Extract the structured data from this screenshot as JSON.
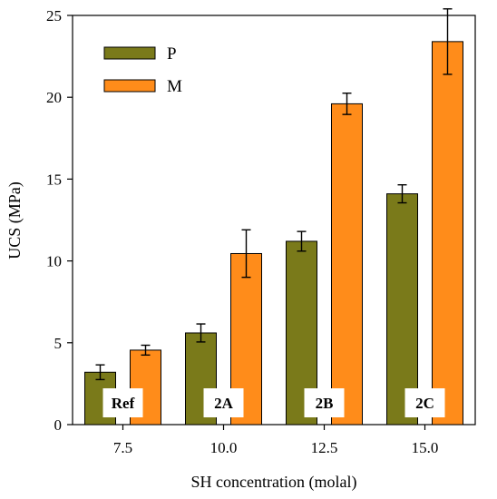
{
  "chart_data": {
    "type": "bar",
    "xlabel": "SH concentration (molal)",
    "ylabel": "UCS (MPa)",
    "ylim": [
      0,
      25
    ],
    "yticks": [
      0,
      5,
      10,
      15,
      20,
      25
    ],
    "categories": [
      "7.5",
      "10.0",
      "12.5",
      "15.0"
    ],
    "group_labels": [
      "Ref",
      "2A",
      "2B",
      "2C"
    ],
    "series": [
      {
        "name": "P",
        "color": "#7a7a1a",
        "values": [
          3.2,
          5.6,
          11.2,
          14.1
        ],
        "errors": [
          0.45,
          0.55,
          0.6,
          0.55
        ]
      },
      {
        "name": "M",
        "color": "#ff8c1a",
        "values": [
          4.55,
          10.45,
          19.6,
          23.4
        ],
        "errors": [
          0.3,
          1.45,
          0.65,
          2.0
        ]
      }
    ],
    "legend_position": "top-left",
    "grid": false
  }
}
